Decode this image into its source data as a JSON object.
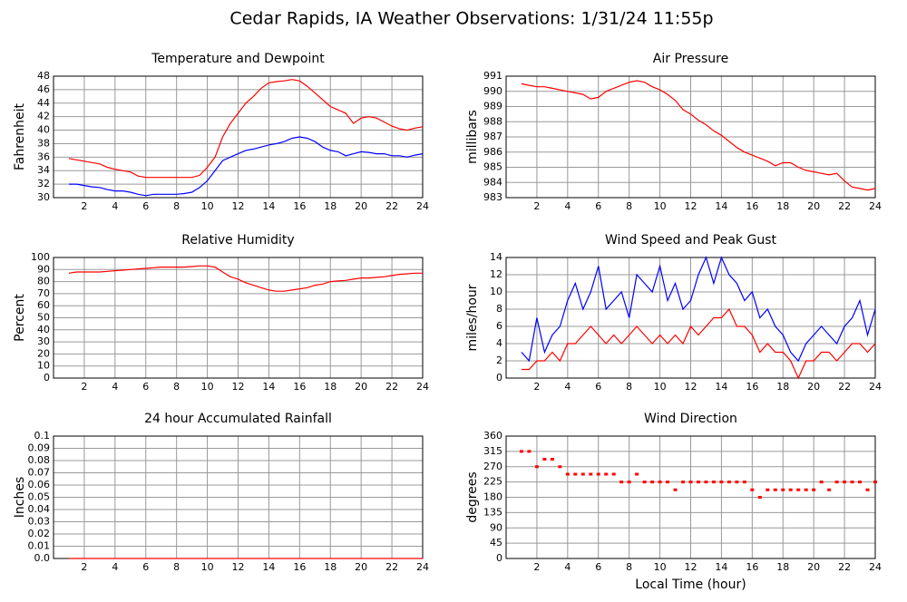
{
  "title": "Cedar Rapids, IA Weather Observations: 1/31/24 11:55p",
  "chart_data": [
    {
      "type": "line",
      "title": "Temperature and Dewpoint",
      "ylabel": "Fahrenheit",
      "grid": true,
      "xlim": [
        0,
        24
      ],
      "xticks": [
        2,
        4,
        6,
        8,
        10,
        12,
        14,
        16,
        18,
        20,
        22,
        24
      ],
      "ylim": [
        30,
        48
      ],
      "yticks": [
        30,
        32,
        34,
        36,
        38,
        40,
        42,
        44,
        46,
        48
      ],
      "x": [
        1,
        1.5,
        2,
        2.5,
        3,
        3.5,
        4,
        4.5,
        5,
        5.5,
        6,
        6.5,
        7,
        7.5,
        8,
        8.5,
        9,
        9.5,
        10,
        10.5,
        11,
        11.5,
        12,
        12.5,
        13,
        13.5,
        14,
        14.5,
        15,
        15.5,
        16,
        16.5,
        17,
        17.5,
        18,
        18.5,
        19,
        19.5,
        20,
        20.5,
        21,
        21.5,
        22,
        22.5,
        23,
        23.5,
        24
      ],
      "series": [
        {
          "color": "#ff0000",
          "values": [
            35.8,
            35.6,
            35.4,
            35.2,
            35,
            34.5,
            34.2,
            34,
            33.8,
            33.2,
            33,
            33,
            33,
            33,
            33,
            33,
            33,
            33.3,
            34.5,
            36,
            39,
            41,
            42.5,
            44,
            45,
            46.2,
            47,
            47.2,
            47.3,
            47.5,
            47.3,
            46.5,
            45.5,
            44.5,
            43.5,
            43,
            42.5,
            41,
            41.8,
            42,
            41.8,
            41.2,
            40.6,
            40.2,
            40,
            40.3,
            40.5
          ]
        },
        {
          "color": "#0000ff",
          "values": [
            32,
            32,
            31.8,
            31.6,
            31.5,
            31.2,
            31,
            31,
            30.8,
            30.5,
            30.3,
            30.5,
            30.5,
            30.5,
            30.5,
            30.6,
            30.8,
            31.5,
            32.5,
            34,
            35.5,
            36,
            36.5,
            37,
            37.2,
            37.5,
            37.8,
            38,
            38.3,
            38.8,
            39,
            38.8,
            38.3,
            37.5,
            37,
            36.8,
            36.2,
            36.5,
            36.8,
            36.7,
            36.5,
            36.5,
            36.2,
            36.2,
            36,
            36.3,
            36.5
          ]
        }
      ]
    },
    {
      "type": "line",
      "title": "Air Pressure",
      "ylabel": "millibars",
      "grid": true,
      "xlim": [
        0,
        24
      ],
      "xticks": [
        2,
        4,
        6,
        8,
        10,
        12,
        14,
        16,
        18,
        20,
        22,
        24
      ],
      "ylim": [
        983,
        991
      ],
      "yticks": [
        983,
        984,
        985,
        986,
        987,
        988,
        989,
        990,
        991
      ],
      "x": [
        1,
        1.5,
        2,
        2.5,
        3,
        3.5,
        4,
        4.5,
        5,
        5.5,
        6,
        6.5,
        7,
        7.5,
        8,
        8.5,
        9,
        9.5,
        10,
        10.5,
        11,
        11.5,
        12,
        12.5,
        13,
        13.5,
        14,
        14.5,
        15,
        15.5,
        16,
        16.5,
        17,
        17.5,
        18,
        18.5,
        19,
        19.5,
        20,
        20.5,
        21,
        21.5,
        22,
        22.5,
        23,
        23.5,
        24
      ],
      "series": [
        {
          "color": "#ff0000",
          "values": [
            990.5,
            990.4,
            990.3,
            990.3,
            990.2,
            990.1,
            990,
            989.9,
            989.8,
            989.5,
            989.6,
            990,
            990.2,
            990.4,
            990.6,
            990.7,
            990.6,
            990.3,
            990.1,
            989.8,
            989.4,
            988.8,
            988.5,
            988.1,
            987.8,
            987.4,
            987.1,
            986.7,
            986.3,
            986,
            985.8,
            985.6,
            985.4,
            985.1,
            985.3,
            985.3,
            985,
            984.8,
            984.7,
            984.6,
            984.5,
            984.6,
            984.1,
            983.7,
            983.6,
            983.5,
            983.6
          ]
        }
      ]
    },
    {
      "type": "line",
      "title": "Relative Humidity",
      "ylabel": "Percent",
      "grid": true,
      "xlim": [
        0,
        24
      ],
      "xticks": [
        2,
        4,
        6,
        8,
        10,
        12,
        14,
        16,
        18,
        20,
        22,
        24
      ],
      "ylim": [
        0,
        100
      ],
      "yticks": [
        0,
        10,
        20,
        30,
        40,
        50,
        60,
        70,
        80,
        90,
        100
      ],
      "x": [
        1,
        1.5,
        2,
        2.5,
        3,
        3.5,
        4,
        4.5,
        5,
        5.5,
        6,
        6.5,
        7,
        7.5,
        8,
        8.5,
        9,
        9.5,
        10,
        10.5,
        11,
        11.5,
        12,
        12.5,
        13,
        13.5,
        14,
        14.5,
        15,
        15.5,
        16,
        16.5,
        17,
        17.5,
        18,
        18.5,
        19,
        19.5,
        20,
        20.5,
        21,
        21.5,
        22,
        22.5,
        23,
        23.5,
        24
      ],
      "series": [
        {
          "color": "#ff0000",
          "values": [
            87,
            88,
            88,
            88,
            88,
            88.5,
            89,
            89.5,
            90,
            90.5,
            91,
            91.5,
            92,
            92,
            92,
            92,
            92.5,
            93,
            93,
            92,
            88,
            84,
            82,
            79,
            77,
            75,
            73,
            72,
            72,
            73,
            74,
            75,
            77,
            78,
            80,
            80.5,
            81,
            82,
            83,
            83,
            83.5,
            84,
            85,
            86,
            86.5,
            87,
            87
          ]
        }
      ]
    },
    {
      "type": "line",
      "title": "Wind Speed and Peak Gust",
      "ylabel": "miles/hour",
      "grid": true,
      "xlim": [
        0,
        24
      ],
      "xticks": [
        2,
        4,
        6,
        8,
        10,
        12,
        14,
        16,
        18,
        20,
        22,
        24
      ],
      "ylim": [
        0,
        14
      ],
      "yticks": [
        0,
        2,
        4,
        6,
        8,
        10,
        12,
        14
      ],
      "x": [
        1,
        1.5,
        2,
        2.5,
        3,
        3.5,
        4,
        4.5,
        5,
        5.5,
        6,
        6.5,
        7,
        7.5,
        8,
        8.5,
        9,
        9.5,
        10,
        10.5,
        11,
        11.5,
        12,
        12.5,
        13,
        13.5,
        14,
        14.5,
        15,
        15.5,
        16,
        16.5,
        17,
        17.5,
        18,
        18.5,
        19,
        19.5,
        20,
        20.5,
        21,
        21.5,
        22,
        22.5,
        23,
        23.5,
        24
      ],
      "series": [
        {
          "color": "#0000ff",
          "values": [
            3,
            2,
            7,
            3,
            5,
            6,
            9,
            11,
            8,
            10,
            13,
            8,
            9,
            10,
            7,
            12,
            11,
            10,
            13,
            9,
            11,
            8,
            9,
            12,
            14,
            11,
            14,
            12,
            11,
            9,
            10,
            7,
            8,
            6,
            5,
            3,
            2,
            4,
            5,
            6,
            5,
            4,
            6,
            7,
            9,
            5,
            8
          ]
        },
        {
          "color": "#ff0000",
          "values": [
            1,
            1,
            2,
            2,
            3,
            2,
            4,
            4,
            5,
            6,
            5,
            4,
            5,
            4,
            5,
            6,
            5,
            4,
            5,
            4,
            5,
            4,
            6,
            5,
            6,
            7,
            7,
            8,
            6,
            6,
            5,
            3,
            4,
            3,
            3,
            2,
            0,
            2,
            2,
            3,
            3,
            2,
            3,
            4,
            4,
            3,
            4
          ]
        }
      ]
    },
    {
      "type": "line",
      "title": "24 hour Accumulated Rainfall",
      "ylabel": "Inches",
      "grid": true,
      "xlim": [
        0,
        24
      ],
      "xticks": [
        2,
        4,
        6,
        8,
        10,
        12,
        14,
        16,
        18,
        20,
        22,
        24
      ],
      "ylim": [
        0,
        0.1
      ],
      "yticks": [
        {
          "value": 0,
          "label": "0.0"
        },
        0.01,
        0.02,
        0.03,
        0.04,
        0.05,
        0.06,
        0.07,
        0.08,
        0.09,
        0.1
      ],
      "x": [
        1,
        24
      ],
      "series": [
        {
          "color": "#ff0000",
          "values": [
            0,
            0
          ]
        }
      ]
    },
    {
      "type": "scatter",
      "title": "Wind Direction",
      "ylabel": "degrees",
      "xlabel": "Local Time (hour)",
      "grid": true,
      "xlim": [
        0,
        24
      ],
      "xticks": [
        2,
        4,
        6,
        8,
        10,
        12,
        14,
        16,
        18,
        20,
        22,
        24
      ],
      "ylim": [
        0,
        360
      ],
      "yticks": [
        0,
        45,
        90,
        135,
        180,
        225,
        270,
        315,
        360
      ],
      "x": [
        1,
        1.5,
        2,
        2.5,
        3,
        3.5,
        4,
        4.5,
        5,
        5.5,
        6,
        6.5,
        7,
        7.5,
        8,
        8.5,
        9,
        9.5,
        10,
        10.5,
        11,
        11.5,
        12,
        12.5,
        13,
        13.5,
        14,
        14.5,
        15,
        15.5,
        16,
        16.5,
        17,
        17.5,
        18,
        18.5,
        19,
        19.5,
        20,
        20.5,
        21,
        21.5,
        22,
        22.5,
        23,
        23.5,
        24
      ],
      "series": [
        {
          "color": "#ff0000",
          "values": [
            315,
            315,
            270,
            292,
            292,
            270,
            248,
            248,
            248,
            248,
            248,
            248,
            248,
            225,
            225,
            248,
            225,
            225,
            225,
            225,
            202,
            225,
            225,
            225,
            225,
            225,
            225,
            225,
            225,
            225,
            202,
            180,
            202,
            202,
            202,
            202,
            202,
            202,
            202,
            225,
            202,
            225,
            225,
            225,
            225,
            202,
            225
          ]
        }
      ]
    }
  ]
}
